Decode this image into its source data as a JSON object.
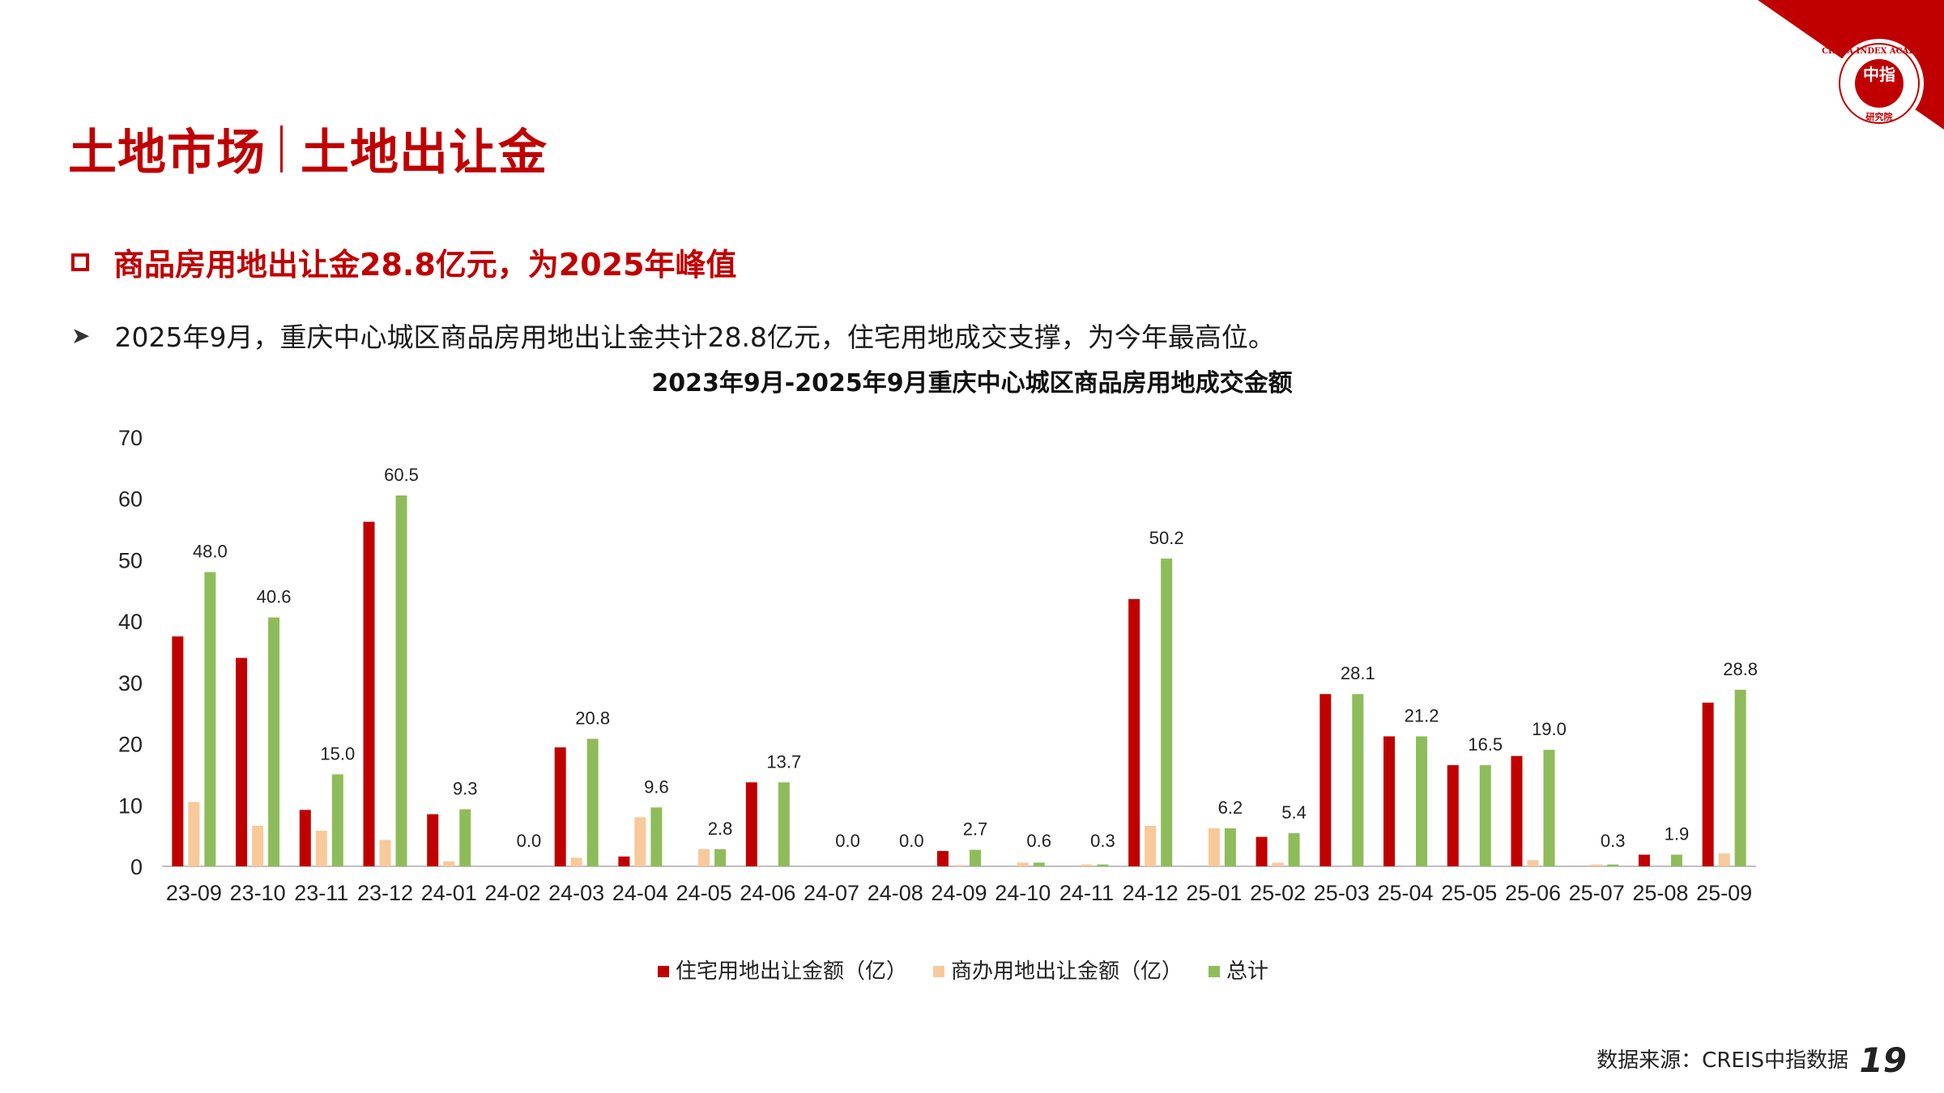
{
  "header": {
    "title_part1": "土地市场",
    "title_part2": "土地出让金",
    "logo_text_top": "CHINA INDEX ACADEMY",
    "logo_text_bottom": "研究院",
    "logo_center": "中指"
  },
  "subheading": "商品房用地出让金28.8亿元，为2025年峰值",
  "bullet_text": "2025年9月，重庆中心城区商品房用地出让金共计28.8亿元，住宅用地成交支撑，为今年最高位。",
  "source_text": "数据来源：CREIS中指数据",
  "page_number": "19",
  "colors": {
    "brand_red": "#c00000",
    "residential": "#c00000",
    "commercial": "#f8c99a",
    "total": "#8fbc5a"
  },
  "chart_data": {
    "type": "bar",
    "title": "2023年9月-2025年9月重庆中心城区商品房用地成交金额",
    "xlabel": "",
    "ylabel": "",
    "ylim": [
      0,
      70
    ],
    "yticks": [
      0,
      10,
      20,
      30,
      40,
      50,
      60,
      70
    ],
    "grid": false,
    "legend_position": "bottom",
    "categories": [
      "23-09",
      "23-10",
      "23-11",
      "23-12",
      "24-01",
      "24-02",
      "24-03",
      "24-04",
      "24-05",
      "24-06",
      "24-07",
      "24-08",
      "24-09",
      "24-10",
      "24-11",
      "24-12",
      "25-01",
      "25-02",
      "25-03",
      "25-04",
      "25-05",
      "25-06",
      "25-07",
      "25-08",
      "25-09"
    ],
    "series": [
      {
        "name": "住宅用地出让金额（亿）",
        "values": [
          37.5,
          34.0,
          9.2,
          56.2,
          8.5,
          0.0,
          19.4,
          1.6,
          0.0,
          13.7,
          0.0,
          0.0,
          2.5,
          0.0,
          0.0,
          43.6,
          0.0,
          4.8,
          28.1,
          21.2,
          16.5,
          18.0,
          0.0,
          1.9,
          26.7
        ]
      },
      {
        "name": "商办用地出让金额（亿）",
        "values": [
          10.5,
          6.6,
          5.8,
          4.3,
          0.8,
          0.0,
          1.4,
          8.0,
          2.8,
          0.0,
          0.0,
          0.0,
          0.2,
          0.6,
          0.3,
          6.6,
          6.2,
          0.6,
          0.0,
          0.0,
          0.0,
          1.0,
          0.3,
          0.0,
          2.1
        ]
      },
      {
        "name": "总计",
        "values": [
          48.0,
          40.6,
          15.0,
          60.5,
          9.3,
          0.0,
          20.8,
          9.6,
          2.8,
          13.7,
          0.0,
          0.0,
          2.7,
          0.6,
          0.3,
          50.2,
          6.2,
          5.4,
          28.1,
          21.2,
          16.5,
          19.0,
          0.3,
          1.9,
          28.8
        ]
      }
    ],
    "data_labels": [
      "48.0",
      "40.6",
      "15.0",
      "60.5",
      "9.3",
      "0.0",
      "20.8",
      "9.6",
      "2.8",
      "13.7",
      "0.0",
      "0.0",
      "2.7",
      "0.6",
      "0.3",
      "50.2",
      "6.2",
      "5.4",
      "28.1",
      "21.2",
      "16.5",
      "19.0",
      "0.3",
      "1.9",
      "28.8"
    ]
  }
}
